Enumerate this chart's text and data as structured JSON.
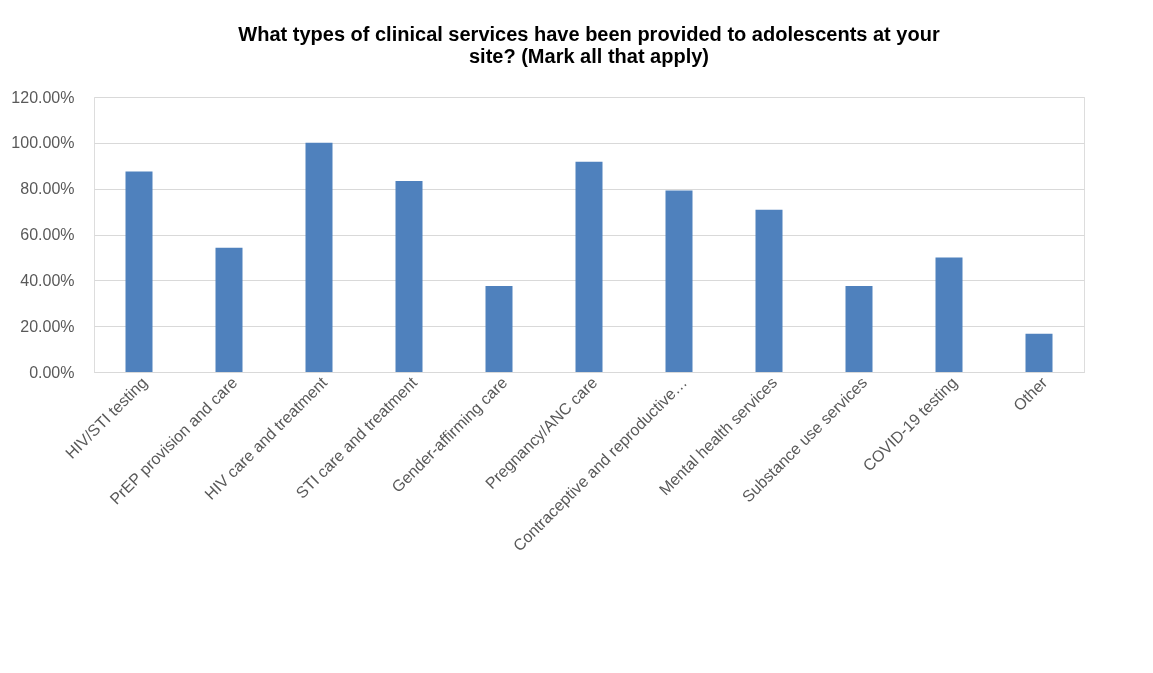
{
  "chart_data": {
    "type": "bar",
    "title": "What types of clinical services have been provided to adolescents at your site? (Mark all that apply)",
    "categories": [
      "HIV/STI testing",
      "PrEP provision and care",
      "HIV care and treatment",
      "STI care and treatment",
      "Gender-affirming care",
      "Pregnancy/ANC care",
      "Contraceptive and reproductive…",
      "Mental health services",
      "Substance use services",
      "COVID-19 testing",
      "Other"
    ],
    "values": [
      87.5,
      54.2,
      100,
      83.3,
      37.5,
      91.7,
      79.2,
      70.8,
      37.5,
      50,
      16.7
    ],
    "color": "#4f81bd",
    "ylim": [
      0,
      120
    ],
    "yticks": [
      {
        "value": 0,
        "label": "0.00%"
      },
      {
        "value": 20,
        "label": "20.00%"
      },
      {
        "value": 40,
        "label": "40.00%"
      },
      {
        "value": 60,
        "label": "60.00%"
      },
      {
        "value": 80,
        "label": "80.00%"
      },
      {
        "value": 100,
        "label": "100.00%"
      },
      {
        "value": 120,
        "label": "120.00%"
      }
    ],
    "grid": "y"
  }
}
